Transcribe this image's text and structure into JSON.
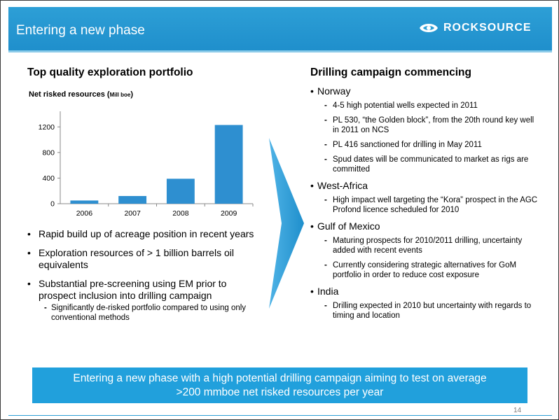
{
  "header": {
    "title": "Entering a new phase",
    "logo_text": "ROCKSOURCE",
    "colors": {
      "band": "#2d9fd6",
      "accent": "#21a0dc"
    }
  },
  "left": {
    "heading": "Top quality exploration portfolio",
    "chart_title_main": "Net risked resources (",
    "chart_title_unit": "Mill boe",
    "chart_title_close": ")",
    "bullets": [
      {
        "text": "Rapid build up of acreage position in recent years"
      },
      {
        "text": "Exploration resources of  > 1 billion barrels oil equivalents"
      },
      {
        "text": "Substantial pre-screening using EM prior to prospect inclusion into drilling campaign"
      }
    ],
    "sub_bullet": "Significantly de-risked portfolio compared to using only conventional methods"
  },
  "chart_data": {
    "type": "bar",
    "title": "Net risked resources (Mill boe)",
    "categories": [
      "2006",
      "2007",
      "2008",
      "2009"
    ],
    "values": [
      50,
      120,
      390,
      1230
    ],
    "ylim": [
      0,
      1400
    ],
    "yticks": [
      0,
      400,
      800,
      1200
    ],
    "bar_color": "#2e8fd0",
    "grid": false,
    "legend": "none"
  },
  "right": {
    "heading": "Drilling campaign commencing",
    "sections": [
      {
        "label": "Norway",
        "items": [
          "4-5 high potential wells expected in 2011",
          "PL 530, “the Golden block”, from the 20th round key well in 2011 on NCS",
          "PL 416 sanctioned for drilling in May 2011",
          "Spud dates will be communicated to market as rigs are committed"
        ]
      },
      {
        "label": "West-Africa",
        "items": [
          "High impact well targeting the “Kora” prospect in the AGC Profond licence scheduled for 2010"
        ]
      },
      {
        "label": "Gulf of Mexico",
        "items": [
          "Maturing prospects for 2010/2011 drilling, uncertainty added with recent events",
          "Currently considering strategic alternatives for GoM portfolio in order to reduce cost exposure"
        ]
      },
      {
        "label": "India",
        "items": [
          "Drilling expected in 2010 but uncertainty with regards to timing and location"
        ]
      }
    ]
  },
  "callout": {
    "line1": "Entering a new phase with a high potential drilling campaign aiming to test on average",
    "line2": ">200 mmboe net risked resources per year"
  },
  "page_number": "14"
}
